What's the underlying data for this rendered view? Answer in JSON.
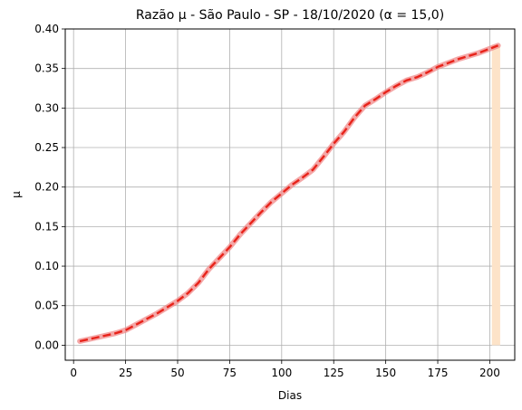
{
  "chart_data": {
    "type": "line",
    "title": "Razão μ - São Paulo - SP - 18/10/2020 (α = 15,0)",
    "xlabel": "Dias",
    "ylabel": "μ",
    "xlim": [
      -4,
      212
    ],
    "ylim": [
      -0.019,
      0.4
    ],
    "grid": true,
    "xticks": [
      0,
      25,
      50,
      75,
      100,
      125,
      150,
      175,
      200
    ],
    "xtick_labels": [
      "0",
      "25",
      "50",
      "75",
      "100",
      "125",
      "150",
      "175",
      "200"
    ],
    "yticks": [
      0.0,
      0.05,
      0.1,
      0.15,
      0.2,
      0.25,
      0.3,
      0.35,
      0.4
    ],
    "ytick_labels": [
      "0.00",
      "0.05",
      "0.10",
      "0.15",
      "0.20",
      "0.25",
      "0.30",
      "0.35",
      "0.40"
    ],
    "highlight_band": {
      "x_start": 201,
      "x_end": 205,
      "color": "#fde3c8"
    },
    "series": [
      {
        "style": "dashed",
        "color": "#e8231a",
        "band_color": "#f08a8a",
        "x": [
          3,
          10,
          20,
          25,
          30,
          40,
          50,
          55,
          60,
          65,
          70,
          75,
          80,
          85,
          90,
          95,
          100,
          105,
          110,
          115,
          120,
          125,
          130,
          135,
          140,
          145,
          150,
          155,
          160,
          165,
          170,
          175,
          180,
          185,
          190,
          195,
          200,
          204
        ],
        "y": [
          0.005,
          0.009,
          0.015,
          0.019,
          0.026,
          0.04,
          0.056,
          0.066,
          0.079,
          0.096,
          0.11,
          0.124,
          0.14,
          0.154,
          0.168,
          0.181,
          0.192,
          0.203,
          0.212,
          0.222,
          0.238,
          0.255,
          0.27,
          0.288,
          0.303,
          0.311,
          0.32,
          0.328,
          0.335,
          0.339,
          0.345,
          0.352,
          0.357,
          0.362,
          0.366,
          0.37,
          0.375,
          0.379
        ]
      }
    ]
  }
}
